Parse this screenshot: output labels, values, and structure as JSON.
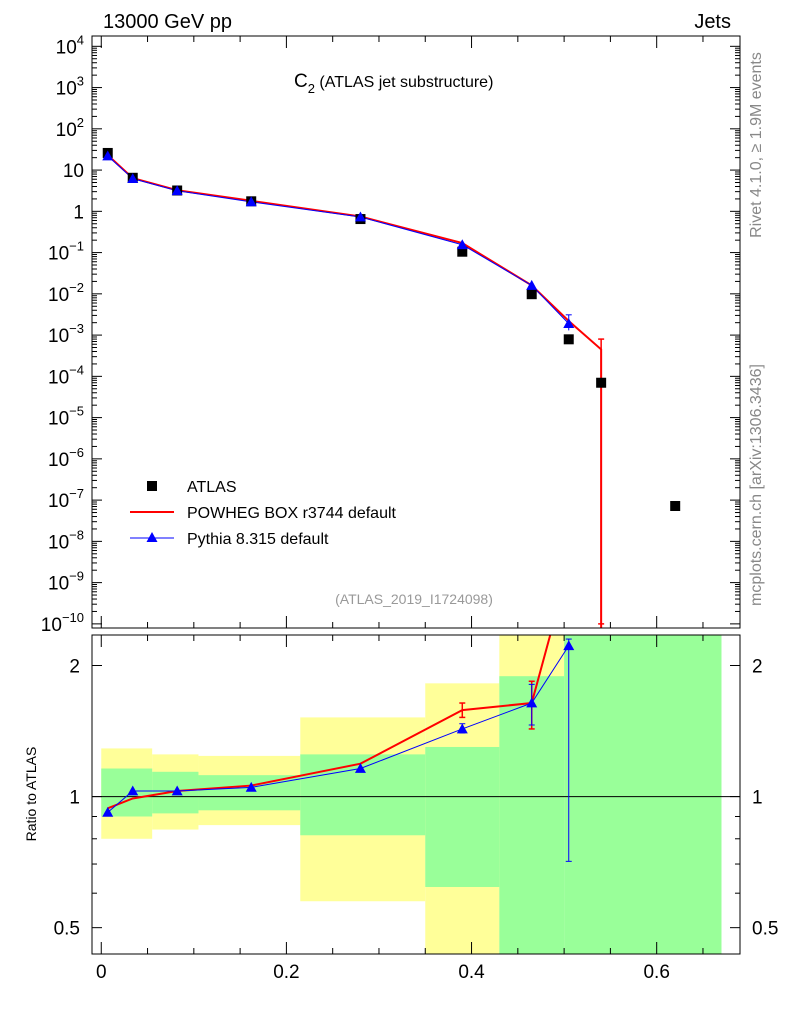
{
  "header": {
    "left": "13000 GeV pp",
    "right": "Jets"
  },
  "title": {
    "main": "C",
    "sub": "2",
    "rest": " (ATLAS jet substructure)"
  },
  "side_labels": {
    "rivet": "Rivet 4.1.0, ≥ 1.9M events",
    "mcplots": "mcplots.cern.ch [arXiv:1306.3436]"
  },
  "analysis_id": "(ATLAS_2019_I1724098)",
  "ratio_ylabel": "Ratio to ATLAS",
  "legend": [
    {
      "label": "ATLAS",
      "marker": "square",
      "color": "#000000"
    },
    {
      "label": "POWHEG BOX r3744 default",
      "marker": "line",
      "color": "#ff0000"
    },
    {
      "label": "Pythia 8.315 default",
      "marker": "triangle",
      "color": "#0000ff"
    }
  ],
  "chart_data": {
    "type": "line",
    "xlim": [
      -0.01,
      0.69
    ],
    "main": {
      "yscale": "log",
      "ylim_exp": [
        -10.1,
        4.25
      ],
      "ytick_labels": [
        {
          "exp": 4,
          "label": "10",
          "sup": "4"
        },
        {
          "exp": 3,
          "label": "10",
          "sup": "3"
        },
        {
          "exp": 2,
          "label": "10",
          "sup": "2"
        },
        {
          "exp": 1,
          "label": "10",
          "sup": ""
        },
        {
          "exp": 0,
          "label": "1",
          "sup": ""
        },
        {
          "exp": -1,
          "label": "10",
          "sup": "−1"
        },
        {
          "exp": -2,
          "label": "10",
          "sup": "−2"
        },
        {
          "exp": -3,
          "label": "10",
          "sup": "−3"
        },
        {
          "exp": -4,
          "label": "10",
          "sup": "−4"
        },
        {
          "exp": -5,
          "label": "10",
          "sup": "−5"
        },
        {
          "exp": -6,
          "label": "10",
          "sup": "−6"
        },
        {
          "exp": -7,
          "label": "10",
          "sup": "−7"
        },
        {
          "exp": -8,
          "label": "10",
          "sup": "−8"
        },
        {
          "exp": -9,
          "label": "10",
          "sup": "−9"
        },
        {
          "exp": -10,
          "label": "10",
          "sup": "−10"
        }
      ]
    },
    "ratio": {
      "yscale": "log",
      "ylim": [
        0.435,
        2.35
      ],
      "ytick_labels": [
        {
          "value": 0.5,
          "label": "0.5"
        },
        {
          "value": 1,
          "label": "1"
        },
        {
          "value": 2,
          "label": "2"
        }
      ],
      "reference_line": 1
    },
    "xtick_labels": [
      {
        "value": 0,
        "label": "0"
      },
      {
        "value": 0.2,
        "label": "0.2"
      },
      {
        "value": 0.4,
        "label": "0.4"
      },
      {
        "value": 0.6,
        "label": "0.6"
      }
    ],
    "bin_edges": [
      0.0,
      0.055,
      0.105,
      0.215,
      0.35,
      0.43,
      0.5,
      0.67
    ],
    "data": {
      "name": "ATLAS",
      "x": [
        0.007,
        0.034,
        0.082,
        0.162,
        0.28,
        0.39,
        0.465,
        0.505,
        0.54,
        0.62
      ],
      "y": [
        26,
        6.5,
        3.2,
        1.75,
        0.65,
        0.105,
        0.0098,
        0.00079,
        7e-05,
        7.2e-08
      ]
    },
    "series": [
      {
        "name": "POWHEG BOX r3744 default",
        "color": "#ff0000",
        "x": [
          0.007,
          0.034,
          0.082,
          0.162,
          0.28,
          0.39,
          0.465,
          0.505,
          0.54
        ],
        "y": [
          23,
          6.4,
          3.25,
          1.8,
          0.75,
          0.17,
          0.016,
          0.0022,
          0.00045
        ],
        "drop_to_bottom_at_x": 0.54,
        "errors": [
          {
            "x": 0.54,
            "low_exp": -10.0,
            "high": 0.0008
          }
        ],
        "ratio": {
          "x": [
            0.007,
            0.034,
            0.082,
            0.162,
            0.28,
            0.39,
            0.465,
            0.485
          ],
          "y": [
            0.94,
            0.99,
            1.03,
            1.06,
            1.19,
            1.58,
            1.64,
            2.35
          ],
          "errors": [
            {
              "x": 0.39,
              "low": 1.52,
              "high": 1.64
            },
            {
              "x": 0.465,
              "low": 1.43,
              "high": 1.84
            }
          ]
        }
      },
      {
        "name": "Pythia 8.315 default",
        "color": "#0000ff",
        "x": [
          0.007,
          0.034,
          0.082,
          0.162,
          0.28,
          0.39,
          0.465,
          0.505
        ],
        "y": [
          22,
          6.2,
          3.15,
          1.7,
          0.73,
          0.155,
          0.016,
          0.0019
        ],
        "errors": [
          {
            "x": 0.505,
            "low": 0.0013,
            "high": 0.0031
          }
        ],
        "ratio": {
          "x": [
            0.007,
            0.034,
            0.082,
            0.162,
            0.28,
            0.39,
            0.465,
            0.505
          ],
          "y": [
            0.92,
            1.03,
            1.03,
            1.05,
            1.16,
            1.43,
            1.64,
            2.22
          ],
          "errors": [
            {
              "x": 0.39,
              "low": 1.4,
              "high": 1.47
            },
            {
              "x": 0.465,
              "low": 1.46,
              "high": 1.81
            },
            {
              "x": 0.505,
              "low": 0.71,
              "high": 2.3
            }
          ]
        }
      }
    ],
    "uncertainty_bands": {
      "yellow": [
        {
          "x0": 0.0,
          "x1": 0.055,
          "low": 0.8,
          "high": 1.29
        },
        {
          "x0": 0.055,
          "x1": 0.105,
          "low": 0.84,
          "high": 1.25
        },
        {
          "x0": 0.105,
          "x1": 0.215,
          "low": 0.86,
          "high": 1.24
        },
        {
          "x0": 0.215,
          "x1": 0.35,
          "low": 0.575,
          "high": 1.52
        },
        {
          "x0": 0.35,
          "x1": 0.43,
          "low": 0.435,
          "high": 1.82
        },
        {
          "x0": 0.43,
          "x1": 0.5,
          "low": 0.435,
          "high": 2.35
        }
      ],
      "green": [
        {
          "x0": 0.0,
          "x1": 0.055,
          "low": 0.9,
          "high": 1.16
        },
        {
          "x0": 0.055,
          "x1": 0.105,
          "low": 0.915,
          "high": 1.14
        },
        {
          "x0": 0.105,
          "x1": 0.215,
          "low": 0.93,
          "high": 1.12
        },
        {
          "x0": 0.215,
          "x1": 0.35,
          "low": 0.815,
          "high": 1.25
        },
        {
          "x0": 0.35,
          "x1": 0.43,
          "low": 0.62,
          "high": 1.3
        },
        {
          "x0": 0.43,
          "x1": 0.5,
          "low": 0.435,
          "high": 1.89
        },
        {
          "x0": 0.5,
          "x1": 0.67,
          "low": 0.435,
          "high": 2.35
        }
      ]
    }
  }
}
